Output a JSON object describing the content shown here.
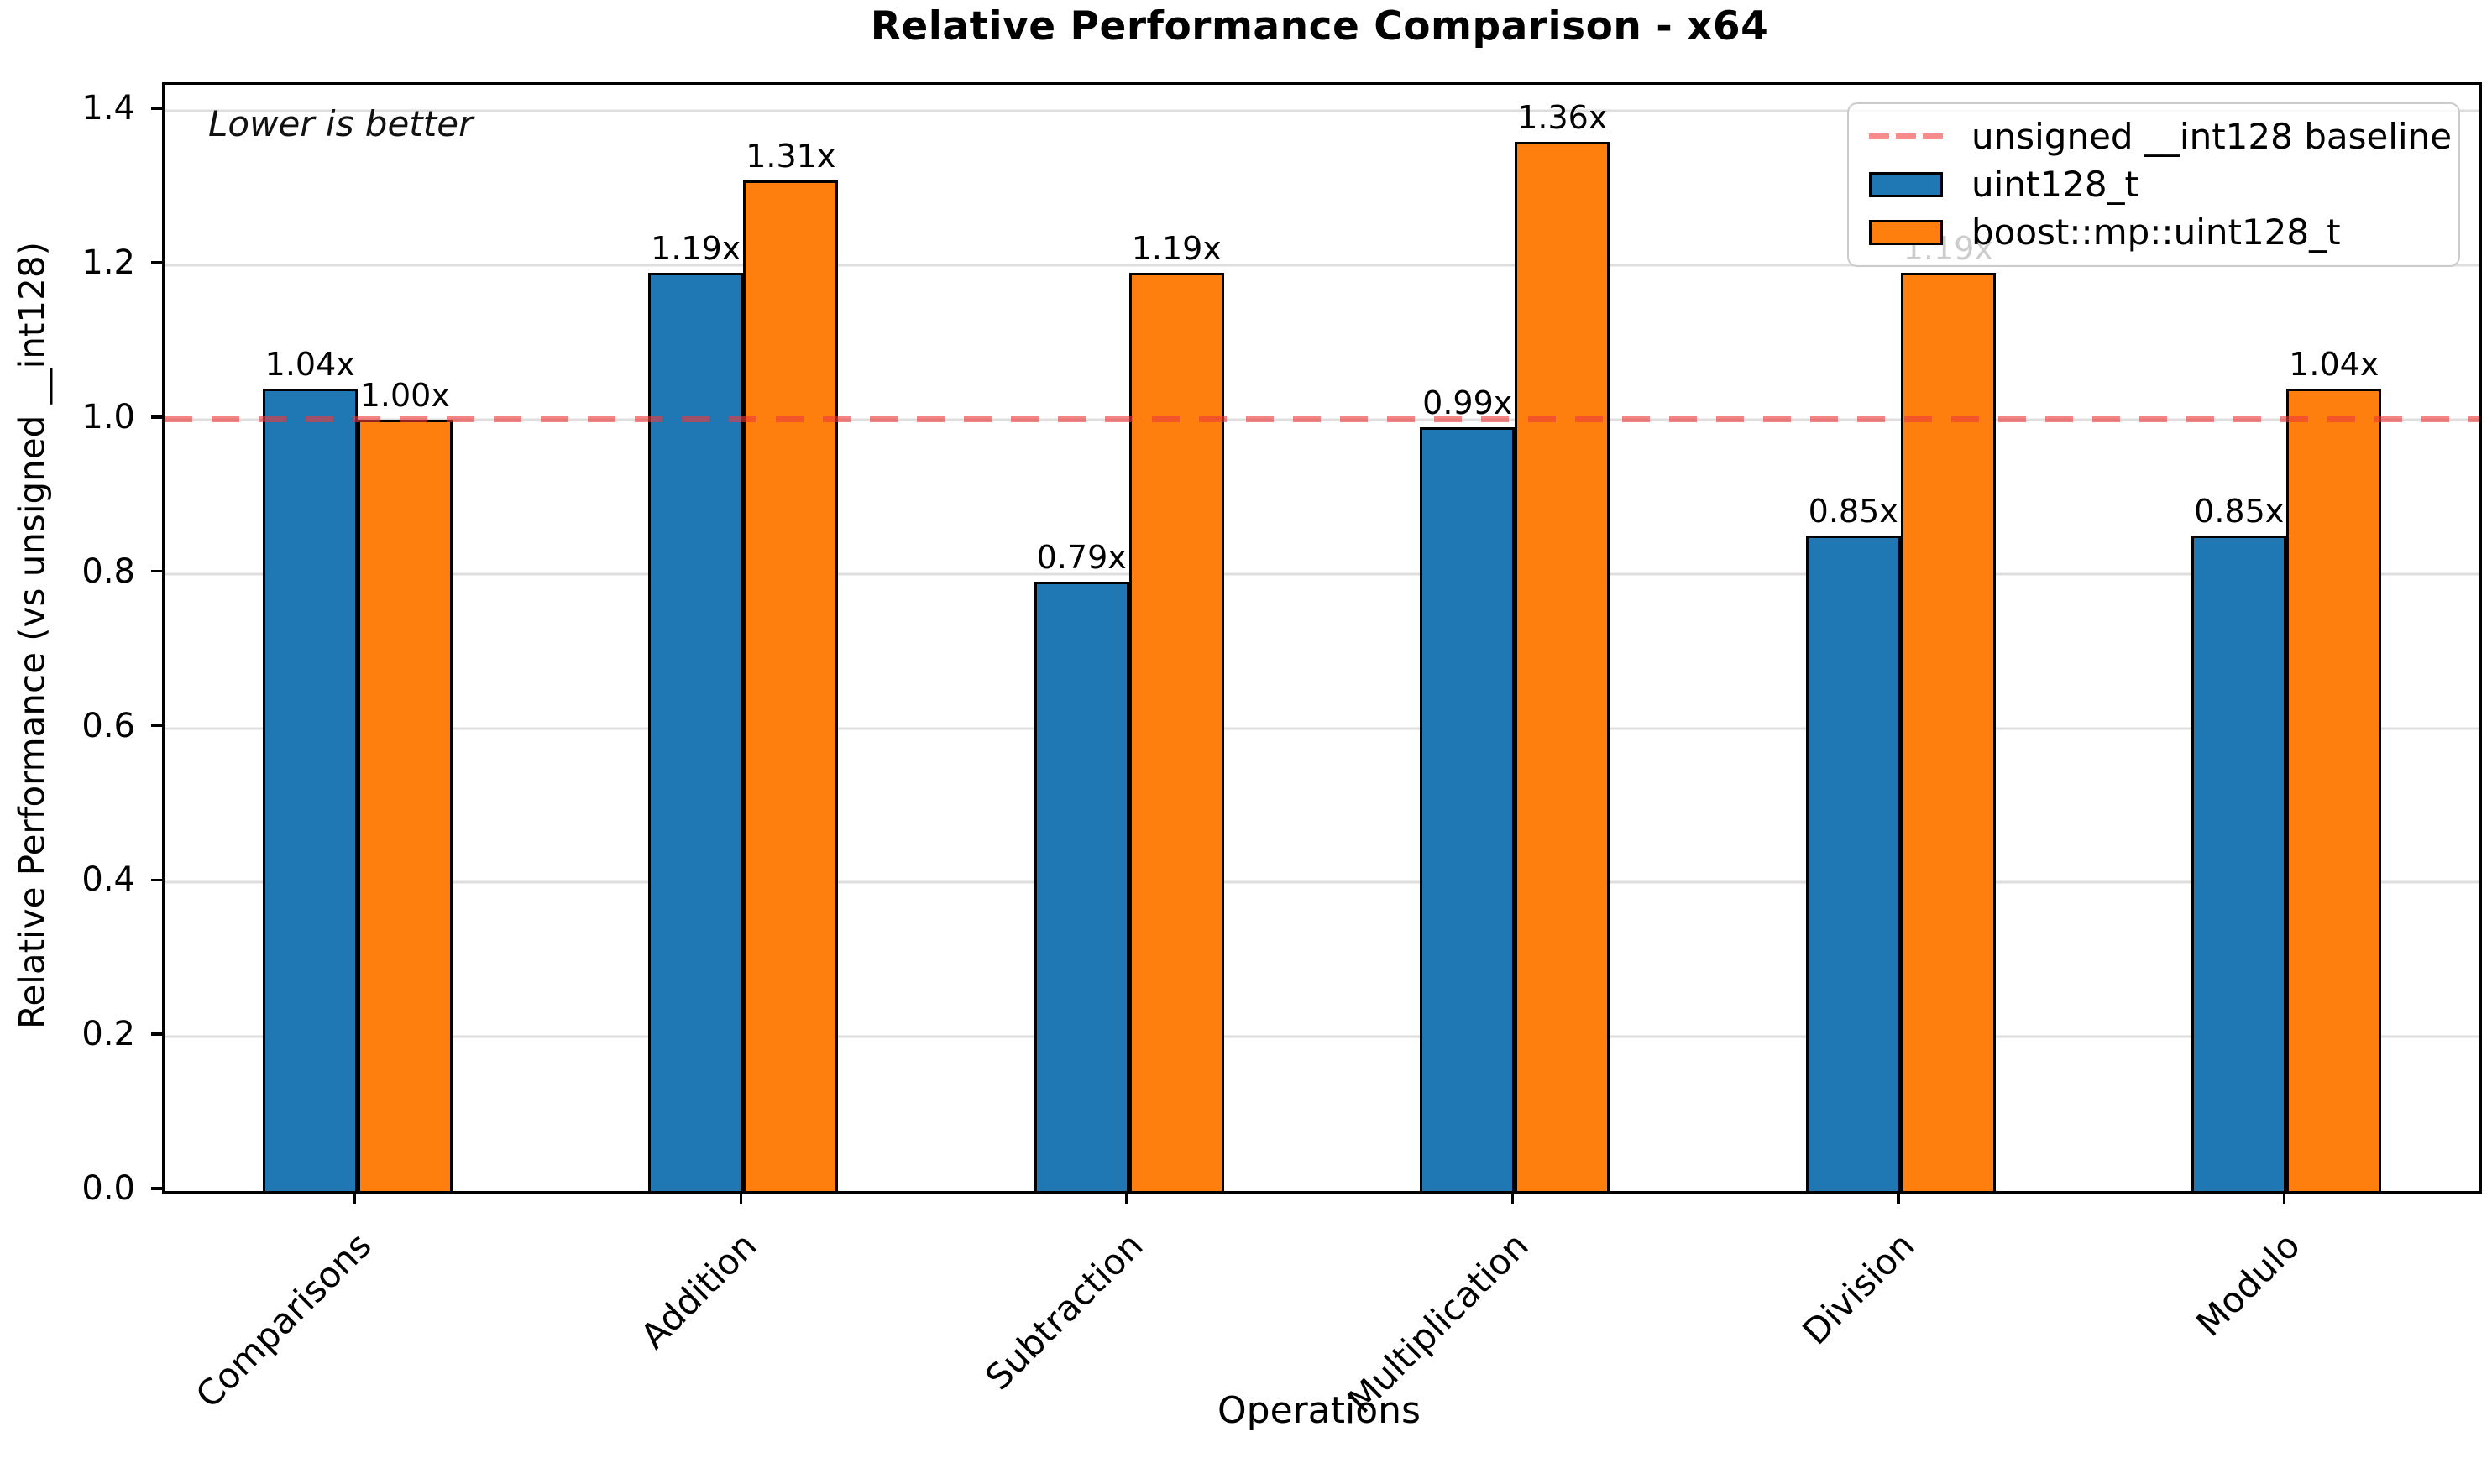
{
  "title": "Relative Performance Comparison - x64",
  "annotation": "Lower is better",
  "xlabel": "Operations",
  "ylabel": "Relative Performance (vs unsigned __int128)",
  "legend": {
    "baseline_label": "unsigned __int128 baseline",
    "series_labels": [
      "uint128_t",
      "boost::mp::uint128_t"
    ]
  },
  "chart_data": {
    "type": "bar",
    "title": "Relative Performance Comparison - x64",
    "xlabel": "Operations",
    "ylabel": "Relative Performance (vs unsigned __int128)",
    "annotation": "Lower is better",
    "categories": [
      "Comparisons",
      "Addition",
      "Subtraction",
      "Multiplication",
      "Division",
      "Modulo"
    ],
    "series": [
      {
        "name": "uint128_t",
        "color": "#1f77b4",
        "values": [
          1.04,
          1.19,
          0.79,
          0.99,
          0.85,
          0.85
        ],
        "labels": [
          "1.04x",
          "1.19x",
          "0.79x",
          "0.99x",
          "0.85x",
          "0.85x"
        ]
      },
      {
        "name": "boost::mp::uint128_t",
        "color": "#ff7f0e",
        "values": [
          1.0,
          1.31,
          1.19,
          1.36,
          1.19,
          1.04
        ],
        "labels": [
          "1.00x",
          "1.31x",
          "1.19x",
          "1.36x",
          "1.19x",
          "1.04x"
        ]
      }
    ],
    "baseline": {
      "value": 1.0,
      "label": "unsigned __int128 baseline",
      "color": "#ec3a3a"
    },
    "ylim": [
      0,
      1.434
    ],
    "yticks": [
      0.0,
      0.2,
      0.4,
      0.6,
      0.8,
      1.0,
      1.2,
      1.4
    ],
    "grid": true,
    "legend_position": "upper right"
  }
}
